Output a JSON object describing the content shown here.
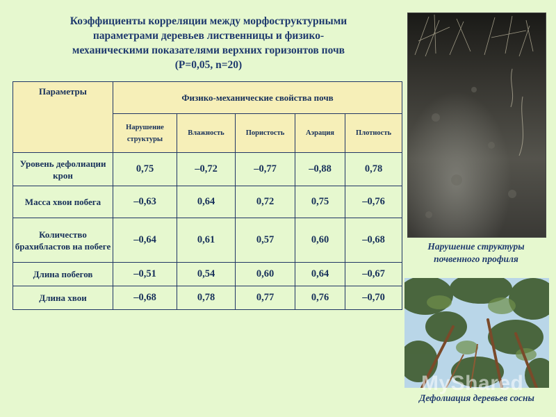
{
  "title": {
    "line1": "Коэффициенты корреляции между морфоструктурными",
    "line2": "параметрами деревьев лиственницы и физико-",
    "line3": "механическими показателями верхних горизонтов почв",
    "line4": "(P=0,05, n=20)"
  },
  "table": {
    "params_header": "Параметры",
    "group_header": "Физико-механические свойства почв",
    "columns": [
      "Нарушение структуры",
      "Влажность",
      "Пористость",
      "Аэрация",
      "Плотность"
    ],
    "rows": [
      {
        "label": "Уровень дефолиации крон",
        "values": [
          "0,75",
          "–0,72",
          "–0,77",
          "–0,88",
          "0,78"
        ]
      },
      {
        "label": "Масса хвои побега",
        "values": [
          "–0,63",
          "0,64",
          "0,72",
          "0,75",
          "–0,76"
        ]
      },
      {
        "label": "Количество брахибластов на побеге",
        "values": [
          "–0,64",
          "0,61",
          "0,57",
          "0,60",
          "–0,68"
        ]
      },
      {
        "label": "Длина побегов",
        "values": [
          "–0,51",
          "0,54",
          "0,60",
          "0,64",
          "–0,67"
        ]
      },
      {
        "label": "Длина хвои",
        "values": [
          "–0,68",
          "0,78",
          "0,77",
          "0,76",
          "–0,70"
        ]
      }
    ]
  },
  "photos": {
    "soil_caption_line1": "Нарушение структуры",
    "soil_caption_line2": "почвенного профиля",
    "trees_caption": "Дефолиация деревьев сосны"
  },
  "watermark": "MyShared"
}
